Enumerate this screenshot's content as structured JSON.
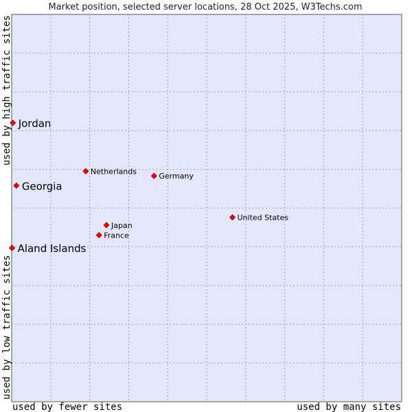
{
  "chart_data": {
    "type": "scatter",
    "title": "Market position, selected server locations, 28 Oct 2025, W3Techs.com",
    "xlabel_left": "used by fewer sites",
    "xlabel_right": "used by many sites",
    "ylabel_bottom": "used by low traffic sites",
    "ylabel_top": "used by high traffic sites",
    "xlim": [
      0,
      100
    ],
    "ylim": [
      0,
      100
    ],
    "grid": true,
    "colors": {
      "plot_background": "#e4e6fa",
      "grid": "#a0a0b8",
      "frame": "#555555",
      "marker": "#ff0000",
      "marker_edge": "#990000"
    },
    "points": [
      {
        "label": "Jordan",
        "x": 0.3,
        "y": 72.0,
        "emphasis": true
      },
      {
        "label": "Georgia",
        "x": 1.2,
        "y": 55.8,
        "emphasis": true
      },
      {
        "label": "Aland Islands",
        "x": 0.1,
        "y": 39.7,
        "emphasis": true
      },
      {
        "label": "Netherlands",
        "x": 19.0,
        "y": 59.5,
        "emphasis": false
      },
      {
        "label": "Germany",
        "x": 36.5,
        "y": 58.3,
        "emphasis": false
      },
      {
        "label": "United States",
        "x": 56.6,
        "y": 47.6,
        "emphasis": false
      },
      {
        "label": "Japan",
        "x": 24.3,
        "y": 45.6,
        "emphasis": false
      },
      {
        "label": "France",
        "x": 22.4,
        "y": 43.0,
        "emphasis": false
      }
    ]
  }
}
